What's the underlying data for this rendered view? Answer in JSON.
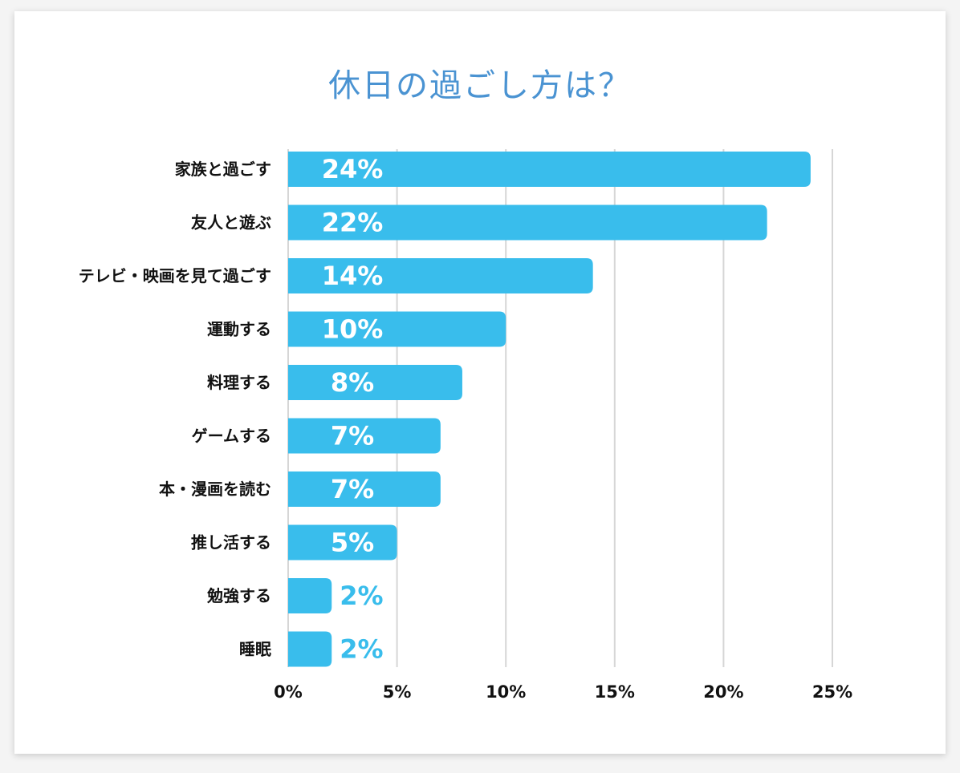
{
  "chart_data": {
    "type": "bar",
    "orientation": "horizontal",
    "title": "休日の過ごし方は？",
    "categories": [
      "家族と過ごす",
      "友人と遊ぶ",
      "テレビ・映画を見て過ごす",
      "運動する",
      "料理する",
      "ゲームする",
      "本・漫画を読む",
      "推し活する",
      "勉強する",
      "睡眠"
    ],
    "values": [
      24,
      22,
      14,
      10,
      8,
      7,
      7,
      5,
      2,
      2
    ],
    "value_labels": [
      "24%",
      "22%",
      "14%",
      "10%",
      "8%",
      "7%",
      "7%",
      "5%",
      "2%",
      "2%"
    ],
    "xlim": [
      0,
      25
    ],
    "xticks": [
      0,
      5,
      10,
      15,
      20,
      25
    ],
    "xtick_labels": [
      "0%",
      "5%",
      "10%",
      "15%",
      "20%",
      "25%"
    ],
    "grid": "vertical",
    "bar_color": "#39bdec",
    "title_color": "#4a93d2"
  }
}
